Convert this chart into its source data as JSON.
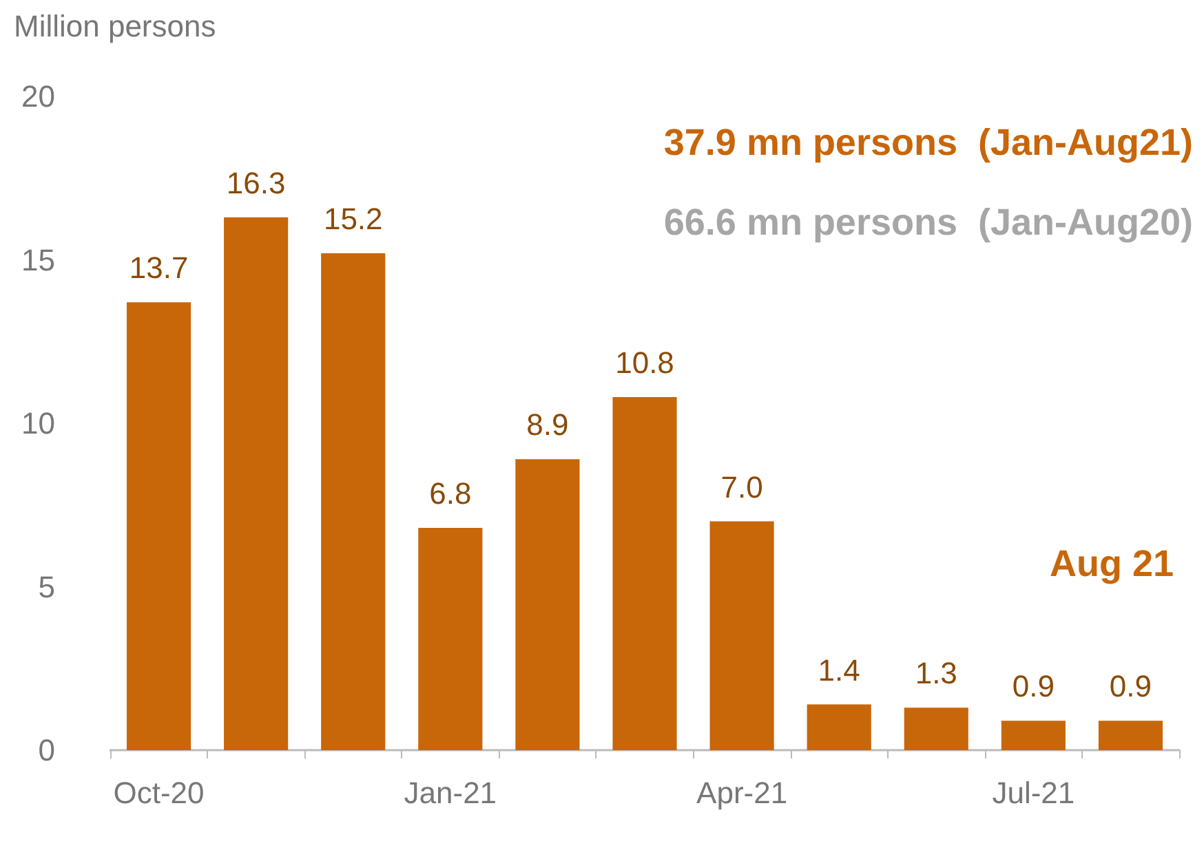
{
  "chart_data": {
    "type": "bar",
    "ylabel": "Million persons",
    "categories": [
      "Oct-20",
      null,
      null,
      "Jan-21",
      null,
      null,
      "Apr-21",
      null,
      null,
      "Jul-21",
      null
    ],
    "values": [
      13.7,
      16.3,
      15.2,
      6.8,
      8.9,
      10.8,
      7.0,
      1.4,
      1.3,
      0.9,
      0.9
    ],
    "value_labels": [
      "13.7",
      "16.3",
      "15.2",
      "6.8",
      "8.9",
      "10.8",
      "7.0",
      "1.4",
      "1.3",
      "0.9",
      "0.9"
    ],
    "color": "#c8660a",
    "ylim": [
      0,
      20
    ],
    "yticks": [
      0,
      5,
      10,
      15,
      20
    ],
    "grid": false,
    "annotations": [
      "37.9 mn persons  (Jan-Aug21)",
      "66.6 mn persons  (Jan-Aug20)",
      "Aug 21"
    ]
  }
}
